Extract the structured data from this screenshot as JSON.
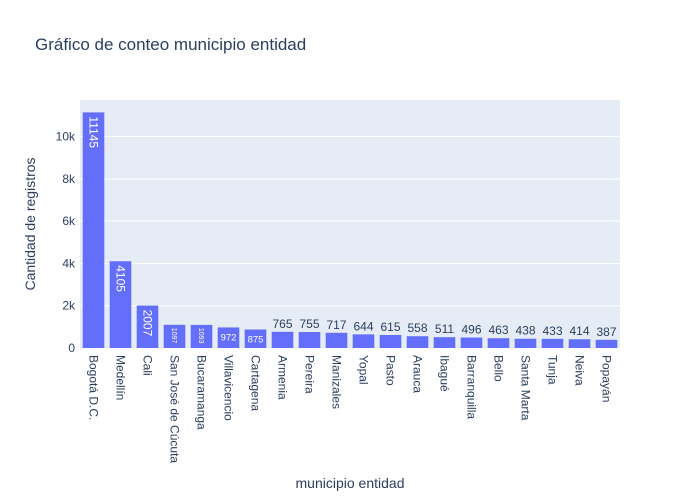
{
  "chart_data": {
    "type": "bar",
    "title": "Gráfico de conteo municipio entidad",
    "xlabel": "municipio entidad",
    "ylabel": "Cantidad de registros",
    "categories": [
      "Bogotá D.C.",
      "Medellín",
      "Cali",
      "San José de Cúcuta",
      "Bucaramanga",
      "Villavicencio",
      "Cartagena",
      "Armenia",
      "Pereira",
      "Manizales",
      "Yopal",
      "Pasto",
      "Arauca",
      "Ibagué",
      "Barranquilla",
      "Bello",
      "Santa Marta",
      "Tunja",
      "Neiva",
      "Popayán"
    ],
    "values": [
      11145,
      4105,
      2007,
      1097,
      1093,
      972,
      875,
      765,
      755,
      717,
      644,
      615,
      558,
      511,
      496,
      463,
      438,
      433,
      414,
      387
    ],
    "ylim": [
      0,
      11731.6
    ],
    "yticks": [
      0,
      2000,
      4000,
      6000,
      8000,
      10000
    ],
    "ytick_labels": [
      "0",
      "2k",
      "4k",
      "6k",
      "8k",
      "10k"
    ],
    "bar_color": "#636efa",
    "plot_bg": "#e5ecf6",
    "grid": true
  }
}
